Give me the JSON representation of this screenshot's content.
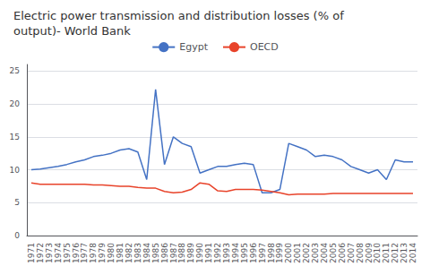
{
  "chart_data": {
    "type": "line",
    "title": "Electric power transmission and distribution losses (% of\noutput)- World Bank",
    "categories": [
      "1971",
      "1972",
      "1973",
      "1974",
      "1975",
      "1976",
      "1977",
      "1978",
      "1979",
      "1980",
      "1981",
      "1982",
      "1983",
      "1984",
      "1985",
      "1986",
      "1987",
      "1988",
      "1989",
      "1990",
      "1991",
      "1992",
      "1993",
      "1994",
      "1995",
      "1996",
      "1997",
      "1998",
      "1999",
      "2000",
      "2001",
      "2002",
      "2003",
      "2004",
      "2005",
      "2006",
      "2007",
      "2008",
      "2009",
      "2010",
      "2011",
      "2012",
      "2013",
      "2014"
    ],
    "series": [
      {
        "name": "Egypt",
        "color": "#4472C4",
        "values": [
          10.0,
          10.1,
          10.3,
          10.5,
          10.8,
          11.2,
          11.5,
          12.0,
          12.2,
          12.5,
          13.0,
          13.2,
          12.7,
          8.5,
          22.2,
          10.8,
          15.0,
          14.0,
          13.5,
          9.5,
          10.0,
          10.5,
          10.5,
          10.8,
          11.0,
          10.8,
          6.5,
          6.5,
          7.0,
          14.0,
          13.5,
          13.0,
          12.0,
          12.2,
          12.0,
          11.5,
          10.5,
          10.0,
          9.5,
          10.0,
          8.5,
          11.5,
          11.2,
          11.2
        ]
      },
      {
        "name": "OECD",
        "color": "#E8432A",
        "values": [
          8.0,
          7.8,
          7.8,
          7.8,
          7.8,
          7.8,
          7.8,
          7.7,
          7.7,
          7.6,
          7.5,
          7.5,
          7.3,
          7.2,
          7.2,
          6.7,
          6.5,
          6.6,
          7.0,
          8.0,
          7.8,
          6.8,
          6.7,
          7.0,
          7.0,
          7.0,
          6.9,
          6.7,
          6.5,
          6.2,
          6.3,
          6.3,
          6.3,
          6.3,
          6.4,
          6.4,
          6.4,
          6.4,
          6.4,
          6.4,
          6.4,
          6.4,
          6.4,
          6.4
        ]
      }
    ],
    "ylim": [
      0,
      26
    ],
    "yticks": [
      0,
      5,
      10,
      15,
      20,
      25
    ],
    "grid": true,
    "legend": "top"
  }
}
